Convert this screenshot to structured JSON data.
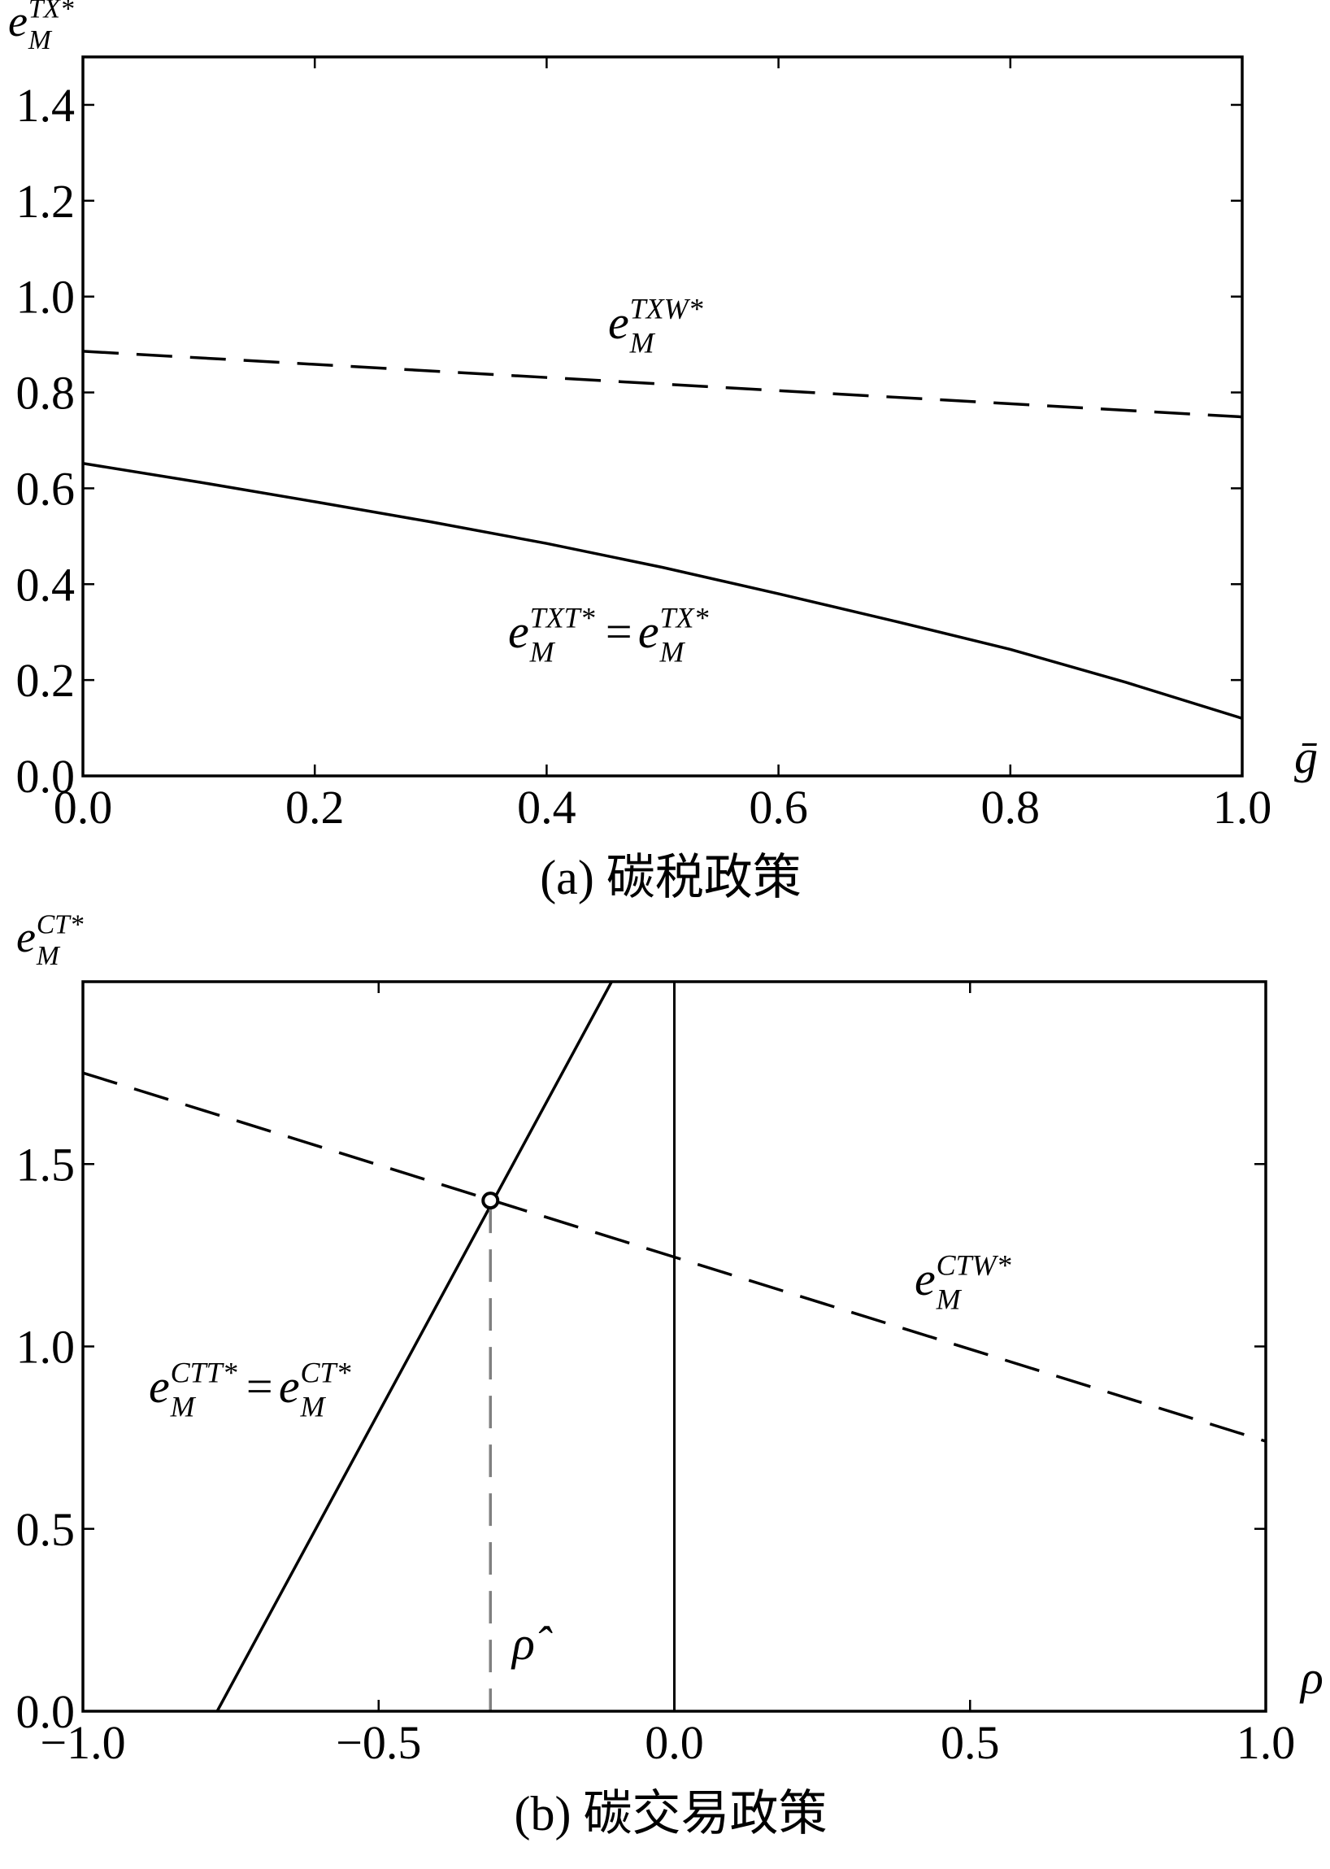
{
  "chart_data": [
    {
      "type": "line",
      "caption": "(a) 碳税政策",
      "y_label": {
        "base": "e",
        "sub": "M",
        "sup": "TX*"
      },
      "x_label": "ḡ",
      "xlim": [
        0,
        1
      ],
      "ylim": [
        0,
        1.5
      ],
      "xticks": [
        {
          "value": 0,
          "label": "0.0"
        },
        0.2,
        0.4,
        0.6,
        0.8,
        {
          "value": 1,
          "label": "1.0"
        }
      ],
      "yticks": [
        {
          "value": 0,
          "label": "0.0"
        },
        0.2,
        0.4,
        0.6,
        0.8,
        {
          "value": 1,
          "label": "1.0"
        },
        1.2,
        1.4
      ],
      "series": [
        {
          "x": [
            0,
            1
          ],
          "values": [
            0.886,
            0.749
          ],
          "color": "#000000",
          "style": "dashed"
        },
        {
          "x": [
            0,
            0.1,
            0.2,
            0.3,
            0.4,
            0.5,
            0.6,
            0.7,
            0.8,
            0.9,
            1
          ],
          "values": [
            0.652,
            0.613,
            0.572,
            0.53,
            0.485,
            0.435,
            0.38,
            0.323,
            0.264,
            0.195,
            0.12
          ],
          "color": "#000000",
          "style": "solid"
        }
      ],
      "annotations": [
        {
          "parts": [
            {
              "base": "e",
              "sub": "M",
              "sup": "TXW*"
            }
          ]
        },
        {
          "parts": [
            {
              "base": "e",
              "sub": "M",
              "sup": "TXT*"
            },
            {
              "base": "e",
              "sub": "M",
              "sup": "TX*"
            }
          ],
          "op": "="
        }
      ]
    },
    {
      "type": "line",
      "caption": "(b) 碳交易政策",
      "y_label": {
        "base": "e",
        "sub": "M",
        "sup": "CT*"
      },
      "x_label": "ρ",
      "xlim": [
        -1,
        1
      ],
      "ylim": [
        0,
        2
      ],
      "xticks": [
        {
          "value": -1,
          "label": "−1.0"
        },
        {
          "value": -0.5,
          "label": "−0.5"
        },
        {
          "value": 0,
          "label": "0.0"
        },
        0.5,
        {
          "value": 1,
          "label": "1.0"
        }
      ],
      "yticks": [
        {
          "value": 0,
          "label": "0.0"
        },
        0.5,
        {
          "value": 1,
          "label": "1.0"
        },
        1.5
      ],
      "series": [
        {
          "x": [
            -1,
            1
          ],
          "values": [
            1.75,
            0.74
          ],
          "color": "#000000",
          "style": "dashed"
        },
        {
          "x": [
            -0.773,
            -0.106
          ],
          "values": [
            0,
            2
          ],
          "color": "#000000",
          "style": "solid"
        }
      ],
      "vlines": [
        0
      ],
      "point": {
        "x": -0.311,
        "y": 1.4,
        "label": "ρ̂",
        "color": "#808080"
      },
      "annotations": [
        {
          "parts": [
            {
              "base": "e",
              "sub": "M",
              "sup": "CTW*"
            }
          ]
        },
        {
          "parts": [
            {
              "base": "e",
              "sub": "M",
              "sup": "CTT*"
            },
            {
              "base": "e",
              "sub": "M",
              "sup": "CT*"
            }
          ],
          "op": "="
        }
      ]
    }
  ]
}
